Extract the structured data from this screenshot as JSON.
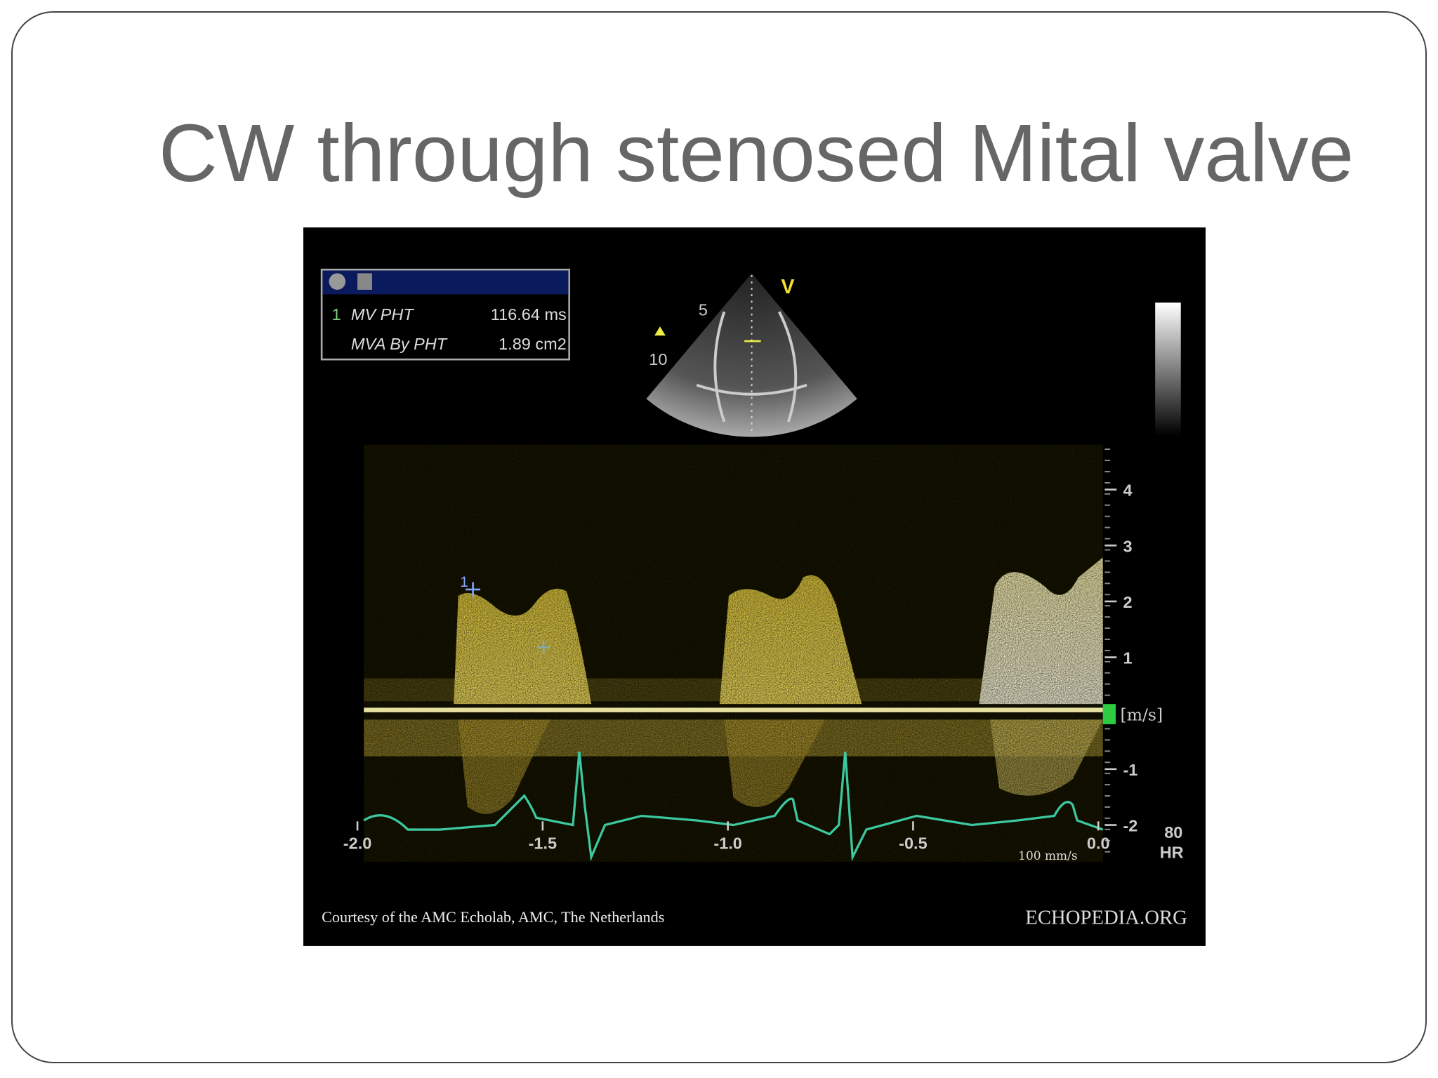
{
  "slide": {
    "title": "CW through stenosed Mital valve"
  },
  "measurements": [
    {
      "index": "1",
      "label": "MV PHT",
      "value": "116.64 ms"
    },
    {
      "label": "MVA By PHT",
      "value": "1.89 cm2"
    }
  ],
  "sector": {
    "depth_labels": [
      "5",
      "10"
    ],
    "marker": "V"
  },
  "caliper_label": "1",
  "velocity_scale": {
    "ticks": [
      "4",
      "3",
      "2",
      "1",
      "-1",
      "-2"
    ],
    "unit": "[m/s]"
  },
  "time_scale": {
    "ticks": [
      "-2.0",
      "-1.5",
      "-1.0",
      "-0.5",
      "0.0"
    ],
    "sweep_speed": "100 mm/s"
  },
  "heart_rate": {
    "value": "80",
    "label": "HR"
  },
  "credit": "Courtesy of the AMC Echolab, AMC, The Netherlands",
  "logo": "ECHOPEDIA.ORG"
}
